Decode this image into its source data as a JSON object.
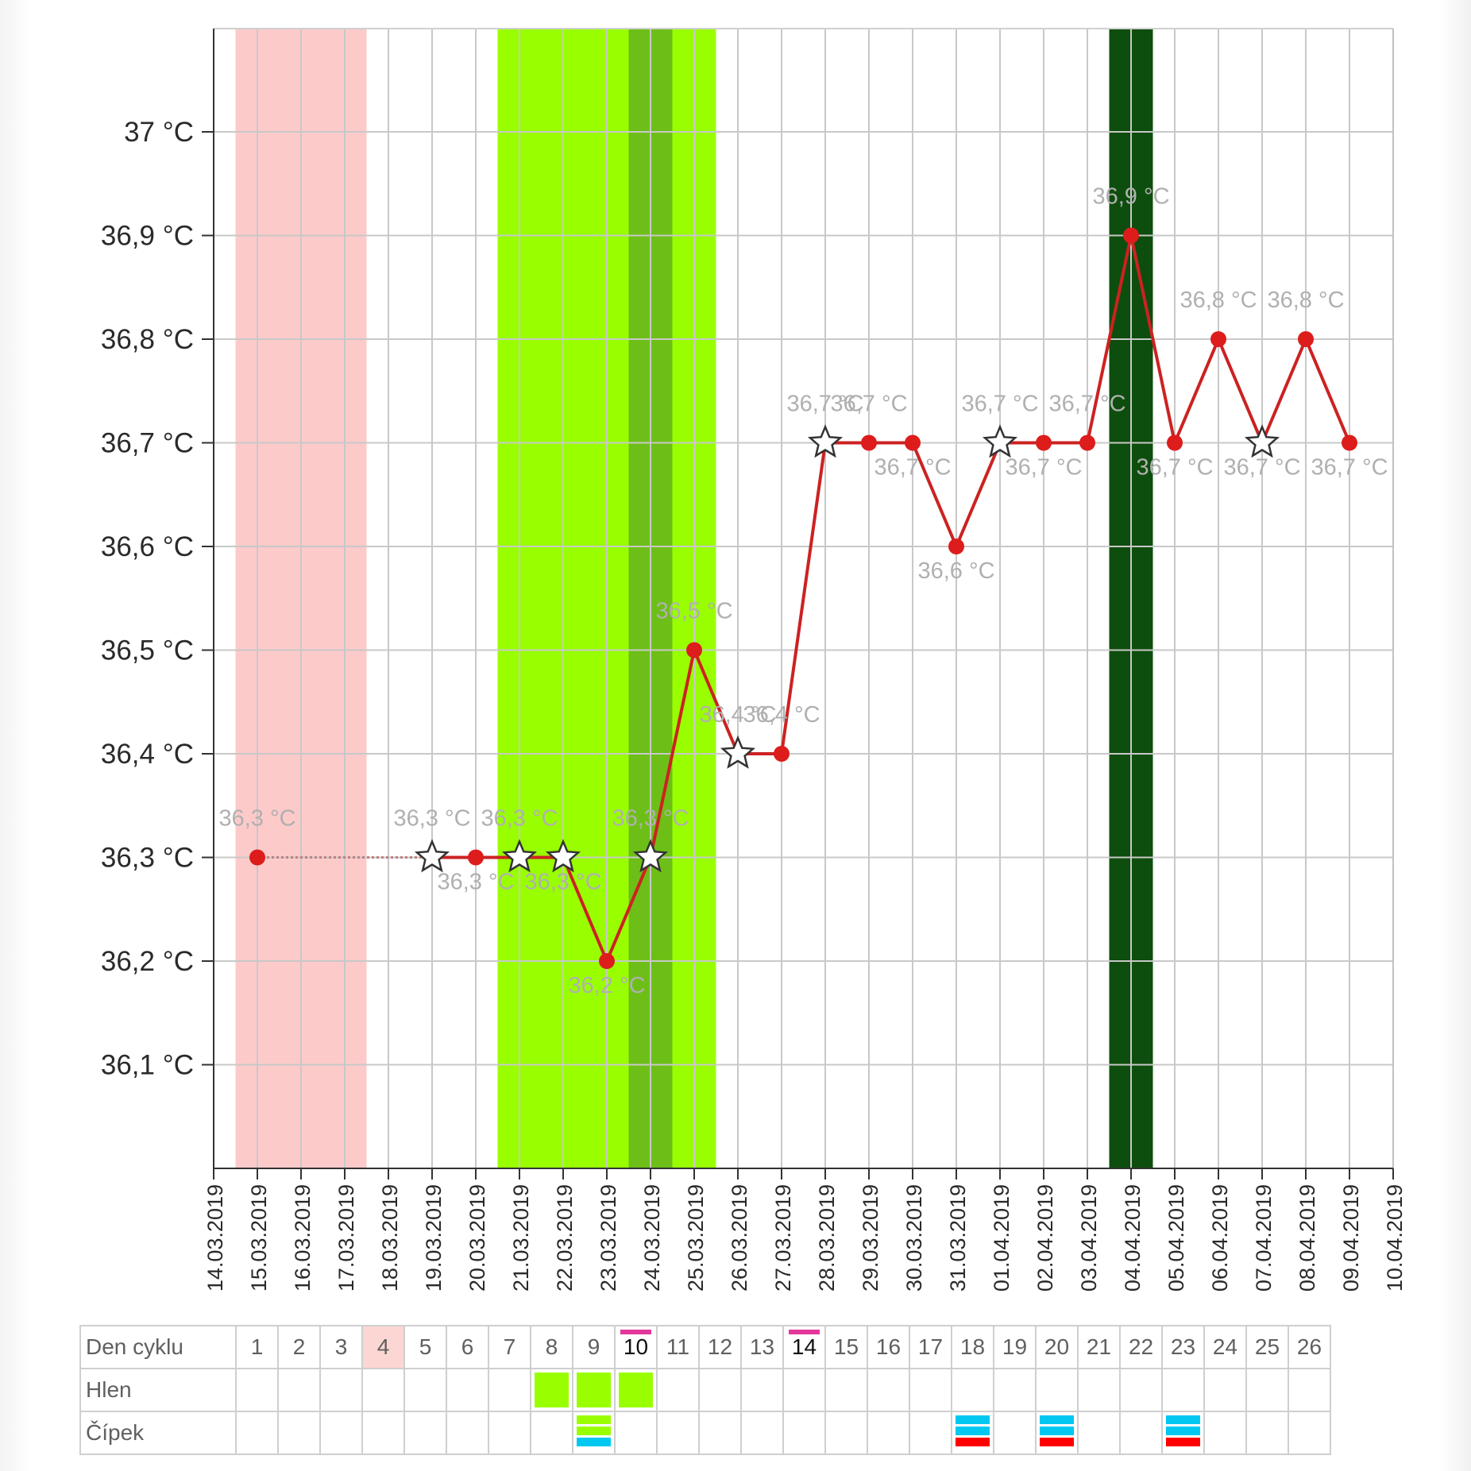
{
  "chart_data": {
    "type": "line",
    "title": "",
    "xlabel": "",
    "ylabel": "",
    "ylim": [
      36.0,
      37.1
    ],
    "y_ticks": [
      37.0,
      36.9,
      36.8,
      36.7,
      36.6,
      36.5,
      36.4,
      36.3,
      36.2,
      36.1
    ],
    "y_tick_labels": [
      "37 °C",
      "36,9 °C",
      "36,8 °C",
      "36,7 °C",
      "36,6 °C",
      "36,5 °C",
      "36,4 °C",
      "36,3 °C",
      "36,2 °C",
      "36,1 °C"
    ],
    "x": [
      "14.03.2019",
      "15.03.2019",
      "16.03.2019",
      "17.03.2019",
      "18.03.2019",
      "19.03.2019",
      "20.03.2019",
      "21.03.2019",
      "22.03.2019",
      "23.03.2019",
      "24.03.2019",
      "25.03.2019",
      "26.03.2019",
      "27.03.2019",
      "28.03.2019",
      "29.03.2019",
      "30.03.2019",
      "31.03.2019",
      "01.04.2019",
      "02.04.2019",
      "03.04.2019",
      "04.04.2019",
      "05.04.2019",
      "06.04.2019",
      "07.04.2019",
      "08.04.2019",
      "09.04.2019",
      "10.04.2019"
    ],
    "grid": true,
    "series": [
      {
        "values": [
          null,
          36.3,
          null,
          null,
          null,
          36.3,
          36.3,
          36.3,
          36.3,
          36.2,
          36.3,
          36.5,
          36.4,
          36.4,
          36.7,
          36.7,
          36.7,
          36.6,
          36.7,
          36.7,
          36.7,
          36.9,
          36.7,
          36.8,
          36.7,
          36.8,
          36.7,
          null
        ],
        "markers": [
          "",
          "dot",
          "",
          "",
          "",
          "star",
          "dot",
          "star",
          "star",
          "dot",
          "star",
          "dot",
          "star",
          "dot",
          "star",
          "dot",
          "dot",
          "dot",
          "star",
          "dot",
          "dot",
          "dot",
          "dot",
          "dot",
          "star",
          "dot",
          "dot",
          ""
        ],
        "labels": [
          "",
          "36,3 °C",
          "",
          "",
          "",
          "36,3 °C",
          "36,3 °C",
          "36,3 °C",
          "36,3 °C",
          "36,2 °C",
          "36,3 °C",
          "36,5 °C",
          "36,4 °C",
          "36,4 °C",
          "36,7 °C",
          "36,7 °C",
          "36,7 °C",
          "36,6 °C",
          "36,7 °C",
          "36,7 °C",
          "36,7 °C",
          "36,9 °C",
          "36,7 °C",
          "36,8 °C",
          "36,7 °C",
          "36,8 °C",
          "36,7 °C",
          ""
        ],
        "label_pos": [
          "",
          "above",
          "",
          "",
          "",
          "above",
          "below",
          "above",
          "below",
          "below",
          "above",
          "above",
          "above",
          "above",
          "above",
          "above",
          "below",
          "below",
          "above",
          "below",
          "above",
          "above",
          "below",
          "above",
          "below",
          "above",
          "below",
          ""
        ],
        "color": "#cc2222"
      }
    ],
    "bands": [
      {
        "from": "15.03.2019",
        "to": "17.03.2019",
        "color": "#fdcaca"
      },
      {
        "from": "21.03.2019",
        "to": "25.03.2019",
        "color": "#99ff00"
      },
      {
        "from": "24.03.2019",
        "to": "24.03.2019",
        "color": "#6dbf17"
      },
      {
        "from": "04.04.2019",
        "to": "04.04.2019",
        "color": "#0d4d0d"
      }
    ]
  },
  "cycle_table": {
    "row_labels": [
      "Den cyklu",
      "Hlen",
      "Čípek"
    ],
    "days": [
      "1",
      "2",
      "3",
      "4",
      "5",
      "6",
      "7",
      "8",
      "9",
      "10",
      "11",
      "12",
      "13",
      "14",
      "15",
      "16",
      "17",
      "18",
      "19",
      "20",
      "21",
      "22",
      "23",
      "24",
      "25",
      "26"
    ],
    "shaded_days": [
      "4"
    ],
    "marked_days": [
      "10",
      "14"
    ],
    "mucus_days": [
      "8",
      "9",
      "10"
    ],
    "cervix": [
      {
        "day": "9",
        "colors": [
          "#99ff00",
          "#99ff00",
          "#00c8f0"
        ]
      },
      {
        "day": "18",
        "colors": [
          "#00c8f0",
          "#00c8f0",
          "#ff0000"
        ]
      },
      {
        "day": "20",
        "colors": [
          "#00c8f0",
          "#00c8f0",
          "#ff0000"
        ]
      },
      {
        "day": "23",
        "colors": [
          "#00c8f0",
          "#00c8f0",
          "#ff0000"
        ]
      }
    ],
    "colors": {
      "mucus": "#99ff00",
      "mark": "#e3389b",
      "shade": "#fcd6d2"
    }
  }
}
